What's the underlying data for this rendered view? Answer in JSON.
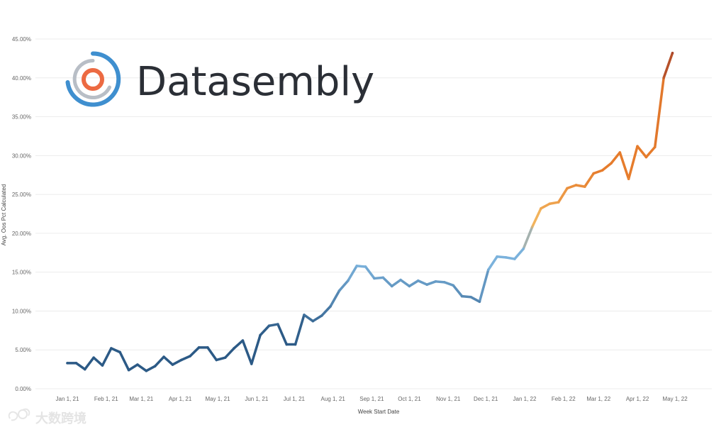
{
  "logo": {
    "text": "Datasembly"
  },
  "watermark": {
    "text": "大数跨境"
  },
  "chart_data": {
    "type": "line",
    "xlabel": "Week Start Date",
    "ylabel": "Avg. Oos Pct Calculated",
    "ylim": [
      0,
      45
    ],
    "y_ticks": [
      "0.00%",
      "5.00%",
      "10.00%",
      "15.00%",
      "20.00%",
      "25.00%",
      "30.00%",
      "35.00%",
      "40.00%",
      "45.00%"
    ],
    "x_ticks": [
      "Jan 1, 21",
      "Feb 1, 21",
      "Mar 1, 21",
      "Apr 1, 21",
      "May 1, 21",
      "Jun 1, 21",
      "Jul 1, 21",
      "Aug 1, 21",
      "Sep 1, 21",
      "Oct 1, 21",
      "Nov 1, 21",
      "Dec 1, 21",
      "Jan 1, 22",
      "Feb 1, 22",
      "Mar 1, 22",
      "Apr 1, 22",
      "May 1, 22"
    ],
    "x_tick_weeks": [
      0,
      4.43,
      8.43,
      12.86,
      17.14,
      21.57,
      25.86,
      30.29,
      34.71,
      39,
      43.43,
      47.71,
      52.14,
      56.57,
      60.57,
      65,
      69.29
    ],
    "grid": true,
    "series": [
      {
        "x": [
          "2021-01-04",
          "2021-01-11",
          "2021-01-18",
          "2021-01-25",
          "2021-02-01",
          "2021-02-08",
          "2021-02-15",
          "2021-02-22",
          "2021-03-01",
          "2021-03-08",
          "2021-03-15",
          "2021-03-22",
          "2021-03-29",
          "2021-04-05",
          "2021-04-12",
          "2021-04-19",
          "2021-04-26",
          "2021-05-03",
          "2021-05-10",
          "2021-05-17",
          "2021-05-24",
          "2021-05-31",
          "2021-06-07",
          "2021-06-14",
          "2021-06-21",
          "2021-06-28",
          "2021-07-05",
          "2021-07-12",
          "2021-07-19",
          "2021-07-26",
          "2021-08-02",
          "2021-08-09",
          "2021-08-16",
          "2021-08-23",
          "2021-08-30",
          "2021-09-06",
          "2021-09-13",
          "2021-09-20",
          "2021-09-27",
          "2021-10-04",
          "2021-10-11",
          "2021-10-18",
          "2021-10-25",
          "2021-11-01",
          "2021-11-08",
          "2021-11-15",
          "2021-11-22",
          "2021-11-29",
          "2021-12-06",
          "2021-12-13",
          "2021-12-20",
          "2021-12-27",
          "2022-01-03",
          "2022-01-10",
          "2022-01-17",
          "2022-01-24",
          "2022-01-31",
          "2022-02-07",
          "2022-02-14",
          "2022-02-21",
          "2022-02-28",
          "2022-03-07",
          "2022-03-14",
          "2022-03-21",
          "2022-03-28",
          "2022-04-04",
          "2022-04-11",
          "2022-04-18",
          "2022-04-25",
          "2022-05-02"
        ],
        "values": [
          3.3,
          3.3,
          2.5,
          4.0,
          3.0,
          5.2,
          4.7,
          2.4,
          3.1,
          2.3,
          2.9,
          4.1,
          3.1,
          3.7,
          4.2,
          5.3,
          5.3,
          3.7,
          4.0,
          5.2,
          6.2,
          3.2,
          6.9,
          8.1,
          8.3,
          5.7,
          5.7,
          9.5,
          8.7,
          9.4,
          10.6,
          12.6,
          13.9,
          15.8,
          15.7,
          14.2,
          14.3,
          13.2,
          14.0,
          13.2,
          13.9,
          13.4,
          13.8,
          13.7,
          13.3,
          11.9,
          11.8,
          11.2,
          15.3,
          17.0,
          16.9,
          16.7,
          18.0,
          20.8,
          23.2,
          23.8,
          24.0,
          25.8,
          26.2,
          26.0,
          27.7,
          28.1,
          29.0,
          30.4,
          27.0,
          31.2,
          29.8,
          31.1,
          40.0,
          43.2
        ]
      }
    ],
    "colors": {
      "dark_blue": "#2c5a86",
      "light_blue": "#7bb2dc",
      "sand": "#f2b35c",
      "orange": "#e67c2c",
      "rust": "#a8442a",
      "grid": "#ececec"
    }
  }
}
